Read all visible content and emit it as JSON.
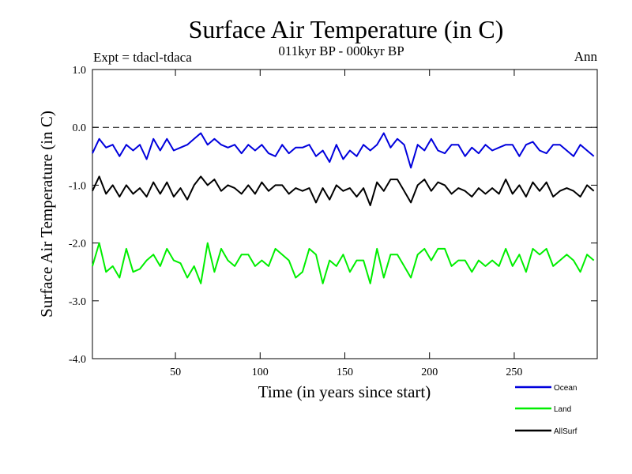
{
  "chart_data": {
    "type": "line",
    "title": "Surface Air Temperature (in C)",
    "subtitle": "011kyr BP - 000kyr BP",
    "experiment_label": "Expt = tdacl-tdaca",
    "season_label": "Ann",
    "xlabel": "Time (in years since start)",
    "ylabel": "Surface Air Temperature (in C)",
    "xlim": [
      1,
      299
    ],
    "ylim": [
      -4.0,
      1.0
    ],
    "xticks": [
      50,
      100,
      150,
      200,
      250
    ],
    "yticks": [
      1.0,
      0.0,
      -1.0,
      -2.0,
      -3.0,
      -4.0
    ],
    "ytick_labels": [
      "1.0",
      "0.0",
      "-1.0",
      "-2.0",
      "-3.0",
      "-4.0"
    ],
    "reference_line": {
      "y": 0.0,
      "style": "dashed"
    },
    "legend_position": "bottom-right",
    "series": [
      {
        "name": "Ocean",
        "color": "#0000dd",
        "x_start": 1,
        "x_step": 4,
        "values": [
          -0.45,
          -0.2,
          -0.35,
          -0.3,
          -0.5,
          -0.3,
          -0.4,
          -0.3,
          -0.55,
          -0.2,
          -0.4,
          -0.2,
          -0.4,
          -0.35,
          -0.3,
          -0.2,
          -0.1,
          -0.3,
          -0.2,
          -0.3,
          -0.35,
          -0.3,
          -0.45,
          -0.3,
          -0.4,
          -0.3,
          -0.45,
          -0.5,
          -0.3,
          -0.45,
          -0.35,
          -0.35,
          -0.3,
          -0.5,
          -0.4,
          -0.6,
          -0.3,
          -0.55,
          -0.4,
          -0.5,
          -0.3,
          -0.4,
          -0.3,
          -0.1,
          -0.35,
          -0.2,
          -0.3,
          -0.7,
          -0.3,
          -0.4,
          -0.2,
          -0.4,
          -0.45,
          -0.3,
          -0.3,
          -0.5,
          -0.35,
          -0.45,
          -0.3,
          -0.4,
          -0.35,
          -0.3,
          -0.3,
          -0.5,
          -0.3,
          -0.25,
          -0.4,
          -0.45,
          -0.3,
          -0.3,
          -0.4,
          -0.5,
          -0.3,
          -0.4,
          -0.5
        ]
      },
      {
        "name": "Land",
        "color": "#00ee00",
        "x_start": 1,
        "x_step": 4,
        "values": [
          -2.4,
          -2.0,
          -2.5,
          -2.4,
          -2.6,
          -2.1,
          -2.5,
          -2.45,
          -2.3,
          -2.2,
          -2.4,
          -2.1,
          -2.3,
          -2.35,
          -2.6,
          -2.4,
          -2.7,
          -2.0,
          -2.5,
          -2.1,
          -2.3,
          -2.4,
          -2.2,
          -2.2,
          -2.4,
          -2.3,
          -2.4,
          -2.1,
          -2.2,
          -2.3,
          -2.6,
          -2.5,
          -2.1,
          -2.2,
          -2.7,
          -2.3,
          -2.4,
          -2.2,
          -2.5,
          -2.3,
          -2.3,
          -2.7,
          -2.1,
          -2.6,
          -2.2,
          -2.2,
          -2.4,
          -2.6,
          -2.2,
          -2.1,
          -2.3,
          -2.1,
          -2.1,
          -2.4,
          -2.3,
          -2.3,
          -2.5,
          -2.3,
          -2.4,
          -2.3,
          -2.4,
          -2.1,
          -2.4,
          -2.2,
          -2.5,
          -2.1,
          -2.2,
          -2.1,
          -2.4,
          -2.3,
          -2.2,
          -2.3,
          -2.5,
          -2.2,
          -2.3
        ]
      },
      {
        "name": "AllSurf",
        "color": "#000000",
        "x_start": 1,
        "x_step": 4,
        "values": [
          -1.1,
          -0.85,
          -1.15,
          -1.0,
          -1.2,
          -1.0,
          -1.15,
          -1.05,
          -1.2,
          -0.95,
          -1.15,
          -0.95,
          -1.2,
          -1.05,
          -1.25,
          -1.0,
          -0.85,
          -1.0,
          -0.9,
          -1.1,
          -1.0,
          -1.05,
          -1.15,
          -1.0,
          -1.15,
          -0.95,
          -1.1,
          -1.0,
          -1.0,
          -1.15,
          -1.05,
          -1.1,
          -1.05,
          -1.3,
          -1.05,
          -1.25,
          -1.0,
          -1.1,
          -1.05,
          -1.2,
          -1.05,
          -1.35,
          -0.95,
          -1.1,
          -0.9,
          -0.9,
          -1.1,
          -1.3,
          -1.0,
          -0.9,
          -1.1,
          -0.95,
          -1.0,
          -1.15,
          -1.05,
          -1.1,
          -1.2,
          -1.05,
          -1.15,
          -1.05,
          -1.15,
          -0.9,
          -1.15,
          -1.0,
          -1.2,
          -0.95,
          -1.1,
          -0.95,
          -1.2,
          -1.1,
          -1.05,
          -1.1,
          -1.2,
          -1.0,
          -1.1
        ]
      }
    ]
  }
}
